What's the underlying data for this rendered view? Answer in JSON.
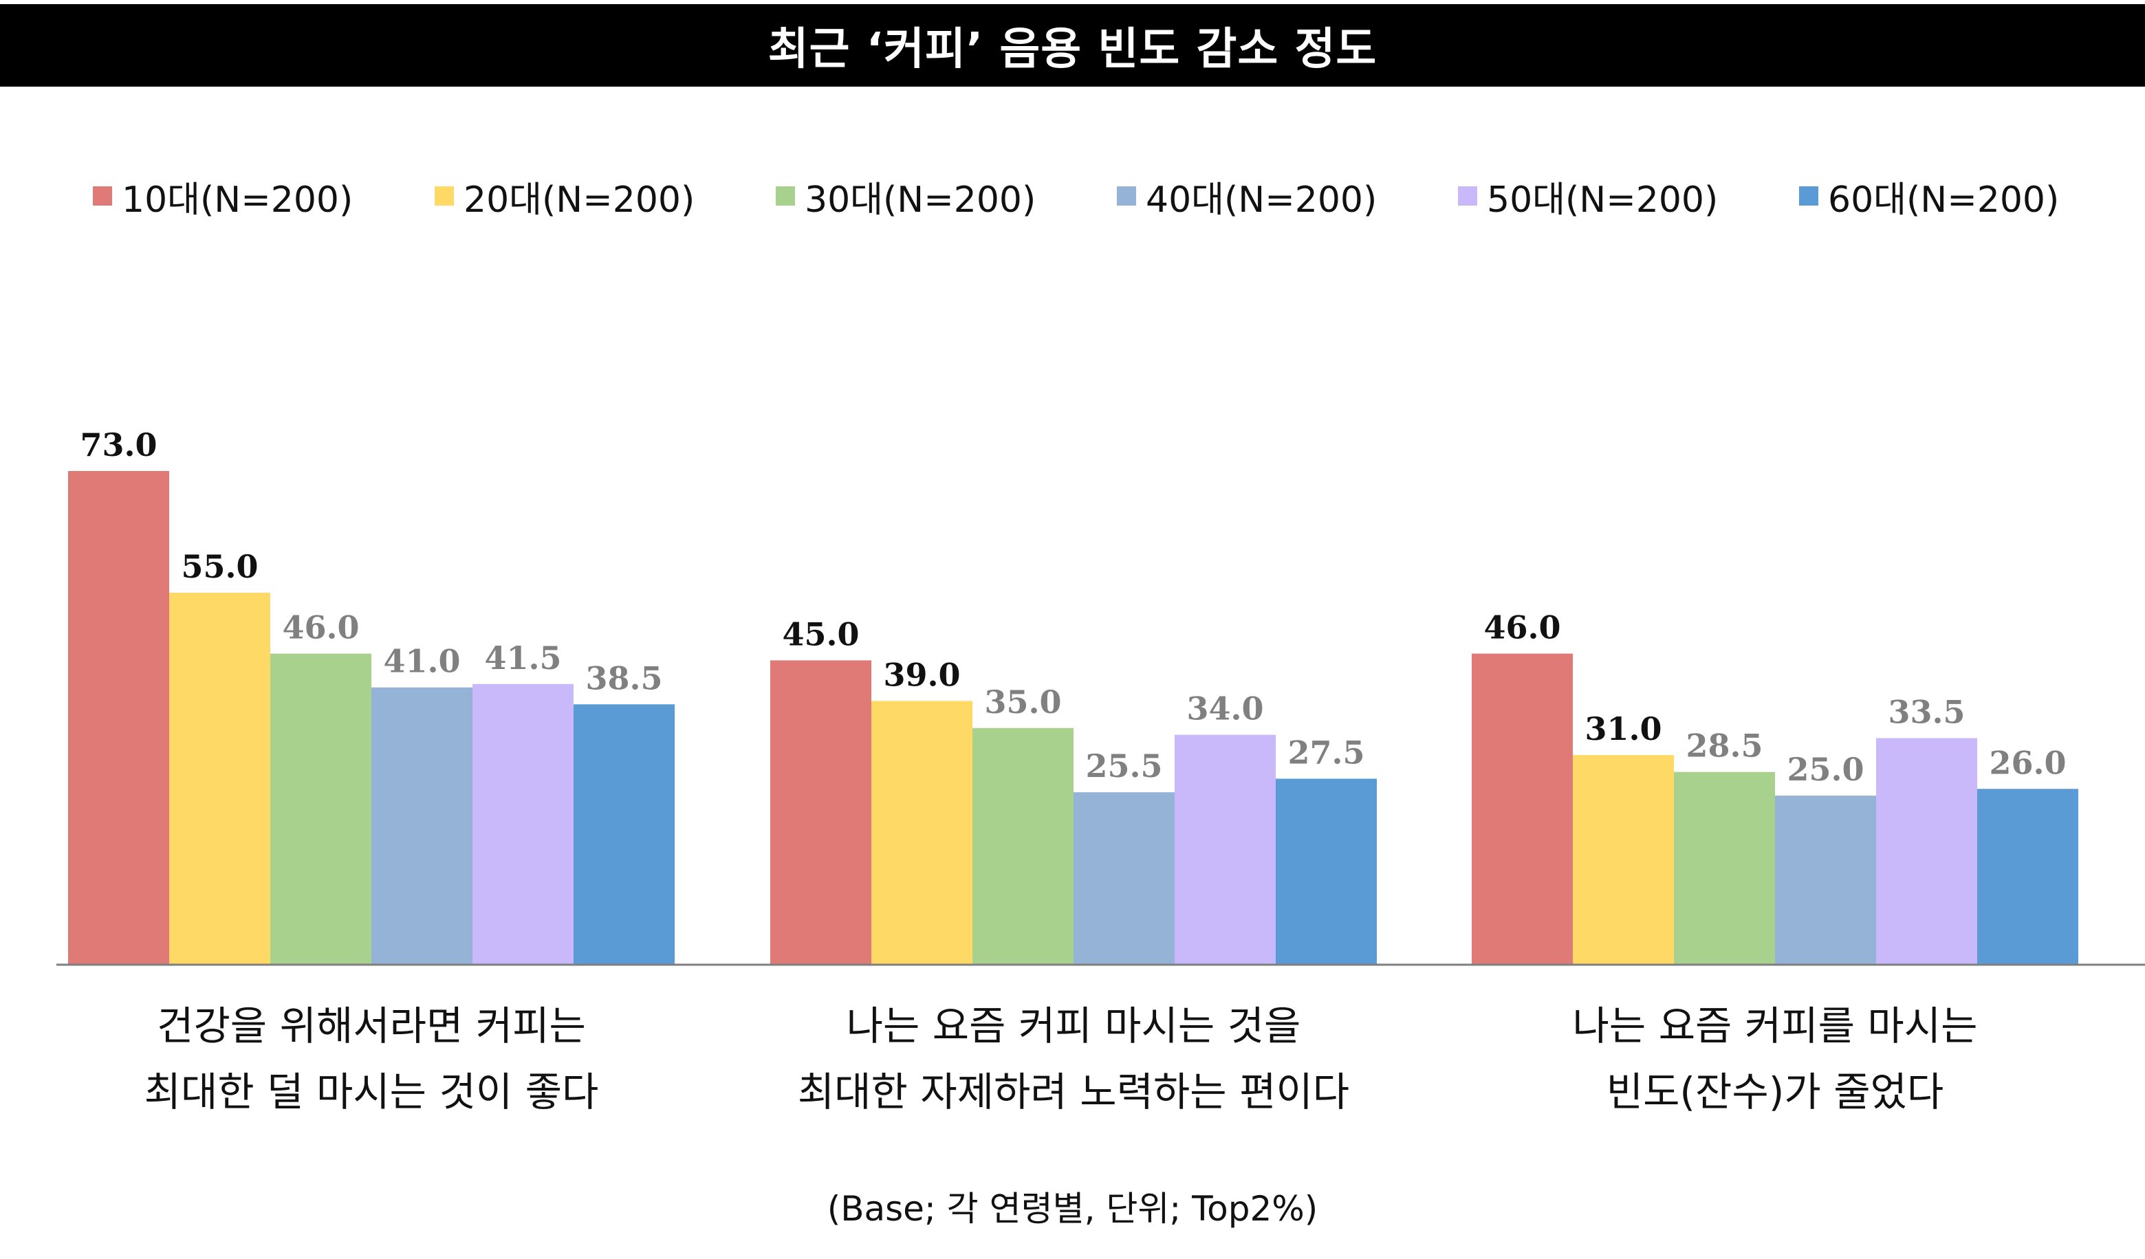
{
  "chart_data": {
    "type": "bar",
    "title": "최근 ‘커피’ 음용 빈도 감소 정도",
    "categories": [
      [
        "건강을 위해서라면 커피는",
        "최대한 덜 마시는 것이 좋다"
      ],
      [
        "나는 요즘 커피 마시는 것을",
        "최대한 자제하려 노력하는 편이다"
      ],
      [
        "나는 요즘 커피를 마시는",
        "빈도(잔수)가 줄었다"
      ]
    ],
    "series": [
      {
        "name": "10대(N=200)",
        "color": "#E07A76",
        "values": [
          73.0,
          45.0,
          46.0
        ],
        "labels": [
          "73.0",
          "45.0",
          "46.0"
        ],
        "label_color": "#111111"
      },
      {
        "name": "20대(N=200)",
        "color": "#FFD966",
        "values": [
          55.0,
          39.0,
          31.0
        ],
        "labels": [
          "55.0",
          "39.0",
          "31.0"
        ],
        "label_color": "#111111"
      },
      {
        "name": "30대(N=200)",
        "color": "#A9D18E",
        "values": [
          46.0,
          35.0,
          28.5
        ],
        "labels": [
          "46.0",
          "35.0",
          "28.5"
        ],
        "label_color": "#808080"
      },
      {
        "name": "40대(N=200)",
        "color": "#95B3D7",
        "values": [
          41.0,
          25.5,
          25.0
        ],
        "labels": [
          "41.0",
          "25.5",
          "25.0"
        ],
        "label_color": "#808080"
      },
      {
        "name": "50대(N=200)",
        "color": "#C9B8FA",
        "values": [
          41.5,
          34.0,
          33.5
        ],
        "labels": [
          "41.5",
          "34.0",
          "33.5"
        ],
        "label_color": "#808080"
      },
      {
        "name": "60대(N=200)",
        "color": "#5B9BD5",
        "values": [
          38.5,
          27.5,
          26.0
        ],
        "labels": [
          "38.5",
          "27.5",
          "26.0"
        ],
        "label_color": "#808080"
      }
    ],
    "label_overrides": {
      "1": {
        "1": "#111111"
      },
      "2": {
        "1": "#808080"
      }
    },
    "ylim": [
      0,
      73.0
    ],
    "xlabel": "",
    "ylabel": "",
    "grid": false,
    "legend": "top"
  },
  "note": "(Base; 각 연령별, 단위; Top2%)"
}
